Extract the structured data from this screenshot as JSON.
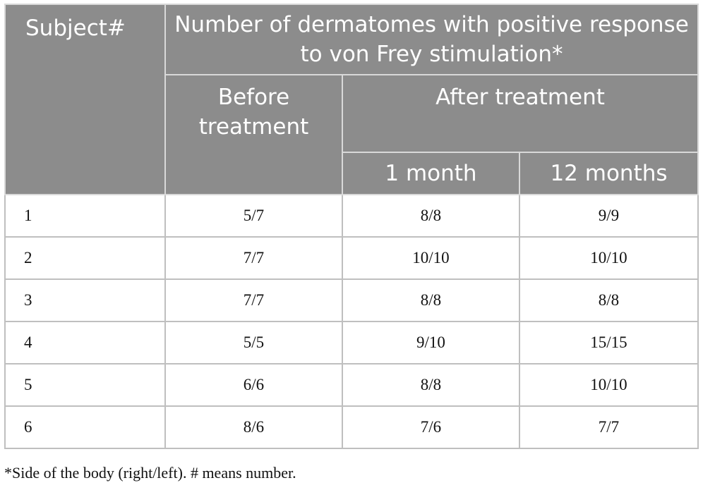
{
  "table": {
    "headers": {
      "subject": "Subject#",
      "main": "Number of dermatomes with positive response to von Frey stimulation*",
      "before": "Before treatment",
      "after": "After treatment",
      "one_month": "1 month",
      "twelve_months": "12 months"
    },
    "rows": [
      {
        "subject": "1",
        "before": "5/7",
        "one_month": "8/8",
        "twelve_months": "9/9"
      },
      {
        "subject": "2",
        "before": "7/7",
        "one_month": "10/10",
        "twelve_months": "10/10"
      },
      {
        "subject": "3",
        "before": "7/7",
        "one_month": "8/8",
        "twelve_months": "8/8"
      },
      {
        "subject": "4",
        "before": "5/5",
        "one_month": "9/10",
        "twelve_months": "15/15"
      },
      {
        "subject": "5",
        "before": "6/6",
        "one_month": "8/8",
        "twelve_months": "10/10"
      },
      {
        "subject": "6",
        "before": "8/6",
        "one_month": "7/6",
        "twelve_months": "7/7"
      }
    ]
  },
  "footnote": "*Side of the body (right/left). # means number.",
  "colors": {
    "header_bg": "#8c8c8c",
    "header_text": "#ffffff",
    "grid_line": "#bfbfbf"
  }
}
